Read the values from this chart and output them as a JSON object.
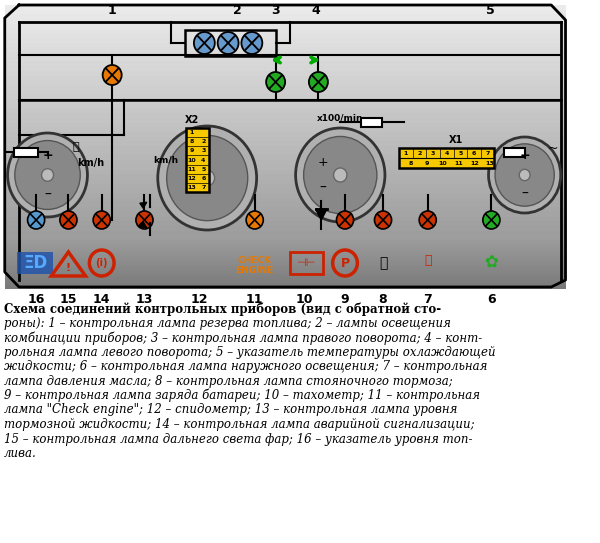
{
  "bg_color": "#ffffff",
  "panel_top_color": "#e8e8e8",
  "panel_bottom_color": "#888888",
  "connector_color": "#f5c800",
  "orange_lamp": "#e87800",
  "red_lamp": "#cc2200",
  "blue_lamp": "#5599cc",
  "green_lamp": "#22aa22",
  "green_arrow_color": "#00aa00",
  "wire_color": "#111111",
  "gauge_outer": "#aaaaaa",
  "gauge_inner": "#777777",
  "text_lines": [
    "Схема соединений контрольных приборов (вид с обратной сто-",
    "роны): 1 – контрольная лампа резерва топлива; 2 – лампы освещения",
    "комбинации приборов; 3 – контрольная лампа правого поворота; 4 – конт-",
    "рольная лампа левого поворота; 5 – указатель температуры охлаждающей",
    "жидкости; 6 – контрольная лампа наружного освещения; 7 – контрольная",
    "лампа давления масла; 8 – контрольная лампа стояночного тормоза;",
    "9 – контрольная лампа заряда батареи; 10 – тахометр; 11 – контрольная",
    "лампа \"Check engine\"; 12 – спидометр; 13 – контрольная лампа уровня",
    "тормозной жидкости; 14 – контрольная лампа аварийной сигнализации;",
    "15 – контрольная лампа дальнего света фар; 16 – указатель уровня топ-",
    "лива."
  ],
  "num_bottom": [
    [
      38,
      "16"
    ],
    [
      72,
      "15"
    ],
    [
      107,
      "14"
    ],
    [
      152,
      "13"
    ],
    [
      210,
      "12"
    ],
    [
      268,
      "11"
    ],
    [
      320,
      "10"
    ],
    [
      363,
      "9"
    ],
    [
      403,
      "8"
    ],
    [
      450,
      "7"
    ],
    [
      517,
      "6"
    ]
  ],
  "num_top": [
    [
      118,
      "1"
    ],
    [
      250,
      "2"
    ],
    [
      290,
      "3"
    ],
    [
      332,
      "4"
    ],
    [
      516,
      "5"
    ]
  ]
}
